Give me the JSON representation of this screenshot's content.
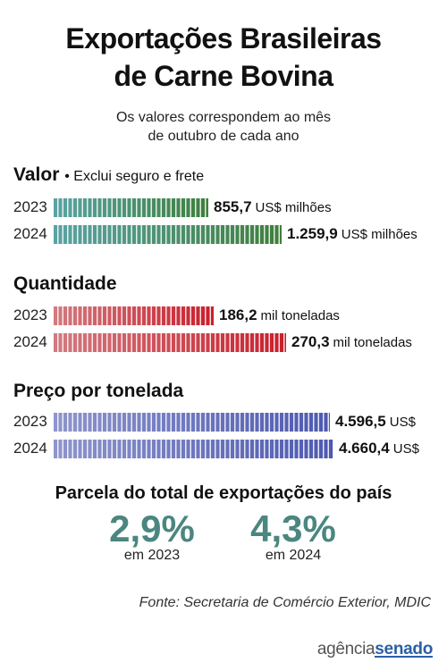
{
  "title_line1": "Exportações Brasileiras",
  "title_line2": "de Carne Bovina",
  "subtitle_line1": "Os valores correspondem ao mês",
  "subtitle_line2": "de outubro de cada ano",
  "chart_data": [
    {
      "type": "bar",
      "orientation": "horizontal",
      "title": "Valor",
      "note": "Exclui seguro e frete",
      "categories": [
        "2023",
        "2024"
      ],
      "values": [
        855.7,
        1259.9
      ],
      "value_labels": [
        "855,7",
        "1.259,9"
      ],
      "unit": "US$ milhões",
      "color_from": "#5aa3a5",
      "color_to": "#3f7f3c"
    },
    {
      "type": "bar",
      "orientation": "horizontal",
      "title": "Quantidade",
      "categories": [
        "2023",
        "2024"
      ],
      "values": [
        186.2,
        270.3
      ],
      "value_labels": [
        "186,2",
        "270,3"
      ],
      "unit": "mil toneladas",
      "color_from": "#d37a80",
      "color_to": "#c91f2b"
    },
    {
      "type": "bar",
      "orientation": "horizontal",
      "title": "Preço por tonelada",
      "categories": [
        "2023",
        "2024"
      ],
      "values": [
        4596.5,
        4660.4
      ],
      "value_labels": [
        "4.596,5",
        "4.660,4"
      ],
      "unit": "US$",
      "color_from": "#8e95cc",
      "color_to": "#4d59b0"
    }
  ],
  "share": {
    "title": "Parcela do total de exportações do país",
    "items": [
      {
        "value": "2,9%",
        "caption": "em 2023"
      },
      {
        "value": "4,3%",
        "caption": "em 2024"
      }
    ],
    "color": "#4b8680"
  },
  "source": "Fonte: Secretaria de Comércio Exterior, MDIC",
  "logo": {
    "part1": "agência",
    "part2": "senado"
  }
}
